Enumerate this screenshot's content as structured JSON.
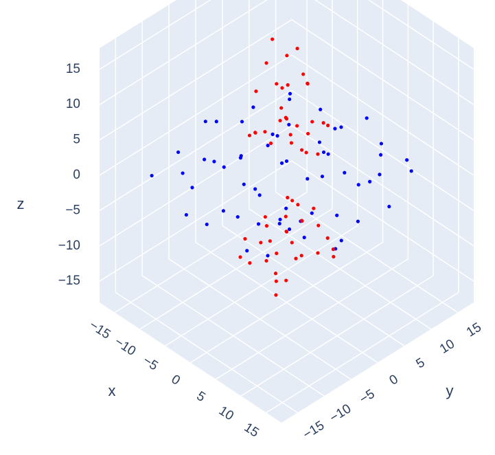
{
  "chart_data": {
    "type": "scatter3d",
    "xlabel": "x",
    "ylabel": "y",
    "zlabel": "z",
    "xlim": [
      -18,
      18
    ],
    "ylim": [
      -18,
      18
    ],
    "zlim": [
      -18,
      18
    ],
    "xticks": [
      {
        "value": -15,
        "label": "−15"
      },
      {
        "value": -10,
        "label": "−10"
      },
      {
        "value": -5,
        "label": "−5"
      },
      0,
      5,
      10,
      15
    ],
    "yticks": [
      {
        "value": -15,
        "label": "−15"
      },
      {
        "value": -10,
        "label": "−10"
      },
      {
        "value": -5,
        "label": "−5"
      },
      0,
      5,
      10,
      15
    ],
    "zticks": [
      {
        "value": -15,
        "label": "−15"
      },
      {
        "value": -10,
        "label": "−10"
      },
      {
        "value": -5,
        "label": "−5"
      },
      0,
      5,
      10,
      15
    ],
    "grid": true,
    "series": [
      {
        "color": "#0000ff",
        "x": [
          -12,
          -8,
          -3,
          5,
          10,
          2,
          -6,
          14,
          -10,
          7,
          -1,
          0,
          -14,
          12,
          4,
          -5,
          9,
          -9,
          1,
          -2,
          6,
          -7,
          3,
          -11,
          11,
          -4,
          8,
          -15,
          15,
          0,
          -3,
          5,
          -8,
          13,
          -12,
          2,
          -6,
          10,
          -1,
          7,
          -13,
          4,
          -9,
          12,
          -2,
          9,
          -5,
          1,
          -10,
          6,
          16,
          -16,
          3,
          -7,
          0,
          8,
          -4,
          11,
          -14,
          5
        ],
        "y": [
          3,
          -6,
          9,
          -10,
          4,
          2,
          12,
          -3,
          -10,
          11,
          -14,
          0,
          7,
          12,
          -5,
          3,
          -8,
          0,
          6,
          -4,
          1,
          -2,
          -12,
          -5,
          -1,
          14,
          8,
          -1,
          5,
          -8,
          -9,
          13,
          8,
          -9,
          12,
          -2,
          -12,
          -13,
          10,
          -4,
          -8,
          4,
          5,
          2,
          1,
          14,
          -7,
          -6,
          10,
          -7,
          -6,
          2,
          8,
          4,
          15,
          -15,
          -15,
          7,
          -12,
          0
        ],
        "z": [
          0.5,
          1,
          -1,
          0.2,
          1.5,
          -0.5,
          0.8,
          -1.2,
          0.3,
          1,
          -0.8,
          2,
          -0.3,
          0.6,
          -2,
          1.8,
          0.4,
          -1.5,
          0.9,
          -1,
          2.2,
          0.1,
          1.2,
          -0.6,
          0,
          -1.7,
          -0.9,
          1,
          0.3,
          2.5,
          -2.2,
          0.7,
          -0.4,
          1.6,
          0.2,
          -2.8,
          1.1,
          -0.5,
          1.4,
          -1.3,
          0.9,
          3,
          -2.4,
          -1.8,
          0.3,
          -0.2,
          2.1,
          0.5,
          1.3,
          -0.7,
          0,
          -0.9,
          -2,
          0.6,
          1,
          0.2,
          -0.4,
          2,
          -1,
          -3
        ]
      },
      {
        "color": "#ff0000",
        "x": [
          0,
          2,
          -3,
          1,
          -1,
          4,
          -2,
          3,
          -4,
          0,
          5,
          -5,
          1,
          -1,
          2,
          -3,
          6,
          -2,
          3,
          0,
          -6,
          4,
          1,
          -1,
          2,
          -4,
          0,
          3,
          -2,
          5,
          0,
          2,
          -3,
          1,
          -1,
          4,
          -2,
          3,
          -4,
          0,
          5,
          -5,
          1,
          -1,
          2,
          -3,
          6,
          -2,
          3,
          0,
          -6,
          4,
          1,
          -1,
          2,
          -4,
          0,
          3,
          -2,
          5
        ],
        "y": [
          0,
          -1,
          2,
          3,
          -2,
          1,
          -4,
          -3,
          0,
          4,
          3,
          -1,
          -5,
          1,
          2,
          -3,
          -2,
          5,
          0,
          -1,
          3,
          -5,
          1,
          -6,
          5,
          4,
          2,
          3,
          0,
          -4,
          0,
          1,
          -2,
          -3,
          2,
          -1,
          4,
          3,
          0,
          -4,
          -3,
          1,
          5,
          -1,
          -2,
          3,
          2,
          -5,
          0,
          1,
          -3,
          5,
          -1,
          6,
          -5,
          -4,
          -2,
          -3,
          0,
          4
        ],
        "z": [
          8,
          6,
          10,
          12,
          5,
          9,
          7,
          11,
          14,
          4,
          8,
          10,
          9,
          16,
          13,
          6,
          7,
          11,
          5,
          10,
          15,
          12,
          7,
          8,
          6,
          9,
          17,
          3,
          12,
          10,
          -8,
          -6,
          -10,
          -12,
          -5,
          -9,
          -7,
          -11,
          -14,
          -4,
          -8,
          -10,
          -9,
          -15,
          -13,
          -6,
          -7,
          -11,
          -5,
          -10,
          -13,
          -12,
          -7,
          -8,
          -6,
          -9,
          -16,
          -3,
          -12,
          -10
        ]
      }
    ]
  }
}
